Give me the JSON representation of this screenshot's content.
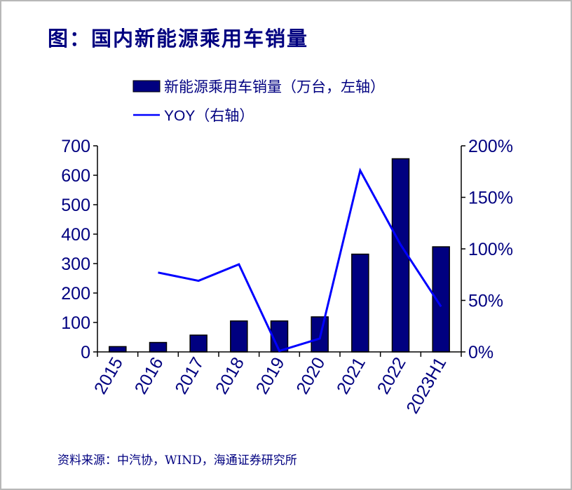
{
  "title": "图：国内新能源乘用车销量",
  "source": "资料来源：中汽协，WIND，海通证券研究所",
  "colors": {
    "bar": "#000080",
    "line": "#0000ff",
    "text": "#000080"
  },
  "chart_data": {
    "type": "bar+line",
    "categories": [
      "2015",
      "2016",
      "2017",
      "2018",
      "2019",
      "2020",
      "2021",
      "2022",
      "2023H1"
    ],
    "series": [
      {
        "name": "新能源乘用车销量（万台，左轴）",
        "type": "bar",
        "axis": "left",
        "values": [
          18,
          32,
          57,
          105,
          105,
          119,
          332,
          656,
          357
        ]
      },
      {
        "name": "YOY（右轴）",
        "type": "line",
        "axis": "right",
        "values": [
          null,
          77,
          69,
          85,
          1,
          13,
          176,
          104,
          44
        ]
      }
    ],
    "left_axis": {
      "range": [
        0,
        700
      ],
      "ticks": [
        "0",
        "100",
        "200",
        "300",
        "400",
        "500",
        "600",
        "700"
      ]
    },
    "right_axis": {
      "range": [
        0,
        200
      ],
      "unit": "%",
      "ticks": [
        "0%",
        "50%",
        "100%",
        "150%",
        "200%"
      ]
    },
    "legend_placement": "top",
    "grid": false
  }
}
